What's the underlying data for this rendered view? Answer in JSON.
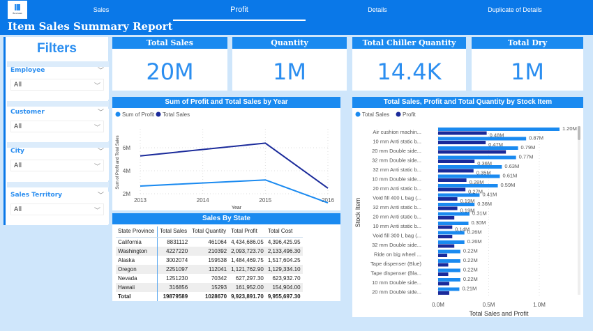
{
  "header": {
    "logo_text": "Business",
    "title": "Item Sales Summary Report",
    "tabs": [
      {
        "label": "Sales"
      },
      {
        "label": "Profit",
        "selected": true
      },
      {
        "label": "Details"
      },
      {
        "label": "Duplicate of Details"
      }
    ]
  },
  "filters": {
    "title": "Filters",
    "items": [
      {
        "label": "Employee",
        "value": "All"
      },
      {
        "label": "Customer",
        "value": "All"
      },
      {
        "label": "City",
        "value": "All"
      },
      {
        "label": "Sales Territory",
        "value": "All"
      }
    ]
  },
  "kpis": [
    {
      "label": "Total Sales",
      "value": "20M"
    },
    {
      "label": "Quantity",
      "value": "1M"
    },
    {
      "label": "Total Chiller Quantity",
      "value": "14.4K"
    },
    {
      "label": "Total Dry",
      "value": "1M"
    }
  ],
  "colors": {
    "accent": "#1a8af0",
    "profit_light": "#1a8af0",
    "sales_dark": "#1a2a9a"
  },
  "chart_data": [
    {
      "type": "line",
      "title": "Sum of Profit and Total Sales by Year",
      "xlabel": "Year",
      "ylabel": "Sum of Profit and Total Sales",
      "categories": [
        "2013",
        "2014",
        "2015",
        "2016"
      ],
      "yticks": [
        "2M",
        "4M",
        "6M"
      ],
      "ylim": [
        1,
        7
      ],
      "grid": true,
      "legend": "top-left",
      "series": [
        {
          "name": "Sum of Profit",
          "color": "#1a8af0",
          "values": [
            2.67,
            2.93,
            3.2,
            1.21
          ]
        },
        {
          "name": "Total Sales",
          "color": "#1a2a9a",
          "values": [
            5.29,
            5.85,
            6.4,
            2.48
          ]
        }
      ]
    },
    {
      "type": "bar",
      "orientation": "horizontal",
      "title": "Total Sales, Profit and Total Quantity by Stock Item",
      "xlabel": "Total Sales and Profit",
      "ylabel": "Stock Item",
      "xticks": [
        "0.0M",
        "0.5M",
        "1.0M"
      ],
      "xlim": [
        0,
        1.25
      ],
      "legend": "top-left",
      "categories": [
        "Air cushion machin...",
        "10 mm Anti static b...",
        "20 mm Double side...",
        "32 mm Double side...",
        "32 mm Anti static b...",
        "10 mm Double side...",
        "20 mm Anti static b...",
        "Void fill 400 L bag (...",
        "32 mm Anti static b...",
        "20 mm Anti static b...",
        "10 mm Anti static b...",
        "Void fill 300 L bag (...",
        "32 mm Double side...",
        "Ride on big wheel ...",
        "Tape dispenser (Blue)",
        "Tape dispenser (Bla...",
        "10 mm Double side...",
        "20 mm Double side..."
      ],
      "series": [
        {
          "name": "Total Sales",
          "color": "#1a8af0",
          "values": [
            1.2,
            0.87,
            0.79,
            0.77,
            0.63,
            0.61,
            0.59,
            0.41,
            0.36,
            0.31,
            0.3,
            0.26,
            0.26,
            0.22,
            0.22,
            0.22,
            0.22,
            0.21
          ],
          "labels": [
            "1.20M",
            "0.87M",
            "0.79M",
            "0.77M",
            "0.63M",
            "0.61M",
            "0.59M",
            "0.41M",
            "0.36M",
            "0.31M",
            "0.30M",
            "0.26M",
            "0.26M",
            "0.22M",
            "0.22M",
            "0.22M",
            "0.22M",
            "0.21M"
          ]
        },
        {
          "name": "Profit",
          "color": "#1a2a9a",
          "values": [
            0.48,
            0.47,
            0.67,
            0.36,
            0.35,
            0.28,
            0.27,
            0.19,
            0.19,
            0.16,
            0.14,
            0.14,
            0.16,
            0.09,
            0.1,
            0.1,
            0.11,
            0.11
          ],
          "labels": [
            "0.48M",
            "0.47M",
            "",
            "0.36M",
            "0.35M",
            "0.28M",
            "0.27M",
            "0.19M",
            "0.19M",
            "",
            "0.14M",
            "",
            "",
            "",
            "",
            "",
            "",
            ""
          ]
        }
      ]
    }
  ],
  "table": {
    "title": "Sales By State",
    "columns": [
      "State Province",
      "Total Sales",
      "Total Quantity",
      "Total Profit",
      "Total Cost"
    ],
    "rows": [
      [
        "California",
        "8831112",
        "461064",
        "4,434,686.05",
        "4,396,425.95"
      ],
      [
        "Washington",
        "4227220",
        "210392",
        "2,093,723.70",
        "2,133,496.30"
      ],
      [
        "Alaska",
        "3002074",
        "159538",
        "1,484,469.75",
        "1,517,604.25"
      ],
      [
        "Oregon",
        "2251097",
        "112041",
        "1,121,762.90",
        "1,129,334.10"
      ],
      [
        "Nevada",
        "1251230",
        "70342",
        "627,297.30",
        "623,932.70"
      ],
      [
        "Hawaii",
        "316856",
        "15293",
        "161,952.00",
        "154,904.00"
      ]
    ],
    "total": [
      "Total",
      "19879589",
      "1028670",
      "9,923,891.70",
      "9,955,697.30"
    ]
  }
}
